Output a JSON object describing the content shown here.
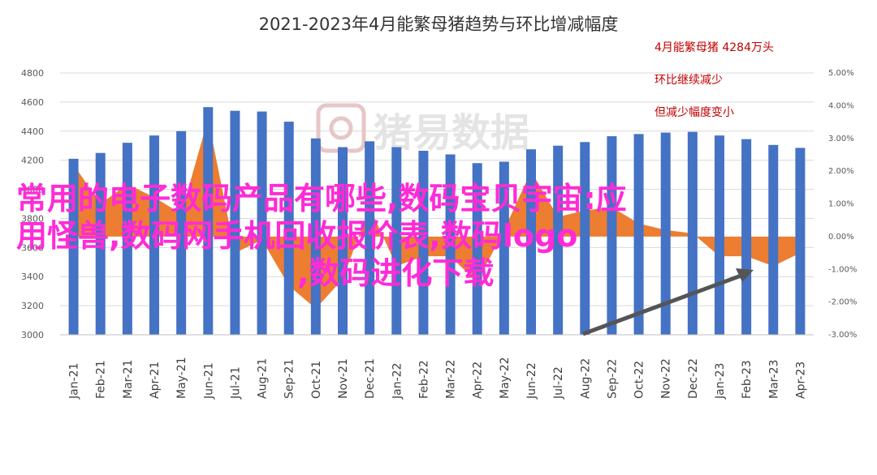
{
  "chart_data": {
    "type": "bar",
    "title": "2021-2023年4月能繁母猪趋势与环比增减幅度",
    "categories": [
      "Jan-21",
      "Feb-21",
      "Mar-21",
      "Apr-21",
      "May-21",
      "Jun-21",
      "Jul-21",
      "Aug-21",
      "Sep-21",
      "Oct-21",
      "Nov-21",
      "Dec-21",
      "Jan-22",
      "Feb-22",
      "Mar-22",
      "Apr-22",
      "May-22",
      "Jun-22",
      "Jul-22",
      "Aug-22",
      "Sep-22",
      "Oct-22",
      "Nov-22",
      "Dec-22",
      "Jan-23",
      "Feb-23",
      "Mar-23",
      "Apr-23"
    ],
    "series": [
      {
        "type": "bar",
        "axis": "left",
        "color": "#4472c4",
        "values": [
          4210,
          4250,
          4320,
          4370,
          4400,
          4565,
          4540,
          4535,
          4465,
          4350,
          4290,
          4330,
          4290,
          4265,
          4240,
          4180,
          4190,
          4275,
          4300,
          4325,
          4365,
          4380,
          4390,
          4395,
          4370,
          4345,
          4305,
          4285
        ]
      },
      {
        "type": "area",
        "axis": "right",
        "color": "#ed7d31",
        "values": [
          2.2,
          1.0,
          1.6,
          1.2,
          0.7,
          3.6,
          -0.5,
          -0.1,
          -1.5,
          -2.2,
          -1.3,
          0.9,
          -0.9,
          -0.6,
          -0.6,
          -1.4,
          0.2,
          2.0,
          0.6,
          0.8,
          0.9,
          0.4,
          0.2,
          0.1,
          -0.6,
          -0.6,
          -0.9,
          -0.5
        ]
      }
    ],
    "left_axis": {
      "ylim": [
        3000,
        4800
      ],
      "ticks": [
        "3000",
        "3200",
        "3400",
        "3600",
        "3800",
        "4000",
        "4200",
        "4400",
        "4600",
        "4800"
      ]
    },
    "right_axis": {
      "ylim": [
        -3,
        5
      ],
      "ticks": [
        "-3.00%",
        "-2.00%",
        "-1.00%",
        "0.00%",
        "1.00%",
        "2.00%",
        "3.00%",
        "4.00%",
        "5.00%"
      ]
    },
    "annotations": [
      "4月能繁母猪 4284万头",
      "环比继续减少",
      "但减少幅度变小"
    ],
    "grid": true
  },
  "watermark": {
    "text": "猪易数据"
  },
  "overlay_text": {
    "line1": "常用的电子数码产品有哪些,数码宝贝宇宙:应",
    "line2": "用怪兽,数码网手机回收报价表,数码logo",
    "line3": ",数码进化下载"
  },
  "colors": {
    "bar": "#4472c4",
    "area": "#ed7d31",
    "annotation": "#c00000",
    "overlay": "#ff2bd6",
    "arrow": "#555555"
  }
}
